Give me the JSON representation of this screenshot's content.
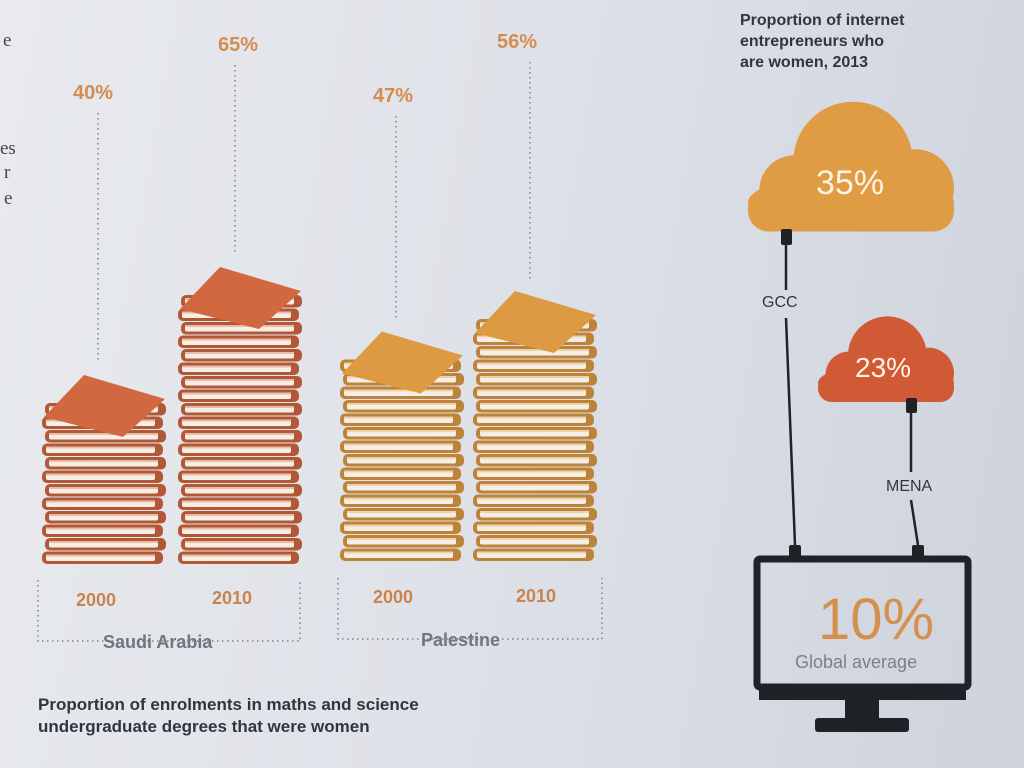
{
  "left_cut_text": [
    "e",
    "es",
    "r",
    "e"
  ],
  "enrolment": {
    "caption_line1": "Proportion of enrolments in maths and science",
    "caption_line2": "undergraduate degrees that were women",
    "groups": [
      {
        "country": "Saudi Arabia",
        "color": "#d2683f",
        "bars": [
          {
            "year": "2000",
            "label": "40%",
            "value": 40
          },
          {
            "year": "2010",
            "label": "65%",
            "value": 65
          }
        ]
      },
      {
        "country": "Palestine",
        "color": "#dd9a43",
        "bars": [
          {
            "year": "2000",
            "label": "47%",
            "value": 47
          },
          {
            "year": "2010",
            "label": "56%",
            "value": 56
          }
        ]
      }
    ]
  },
  "entrepreneurs": {
    "title_line1": "Proportion of internet",
    "title_line2": "entrepreneurs who",
    "title_line3": "are women, 2013",
    "gcc": {
      "label": "GCC",
      "value": "35%",
      "color": "#e09c44"
    },
    "mena": {
      "label": "MENA",
      "value": "23%",
      "color": "#cf5a35"
    },
    "global": {
      "value": "10%",
      "label": "Global average"
    }
  }
}
